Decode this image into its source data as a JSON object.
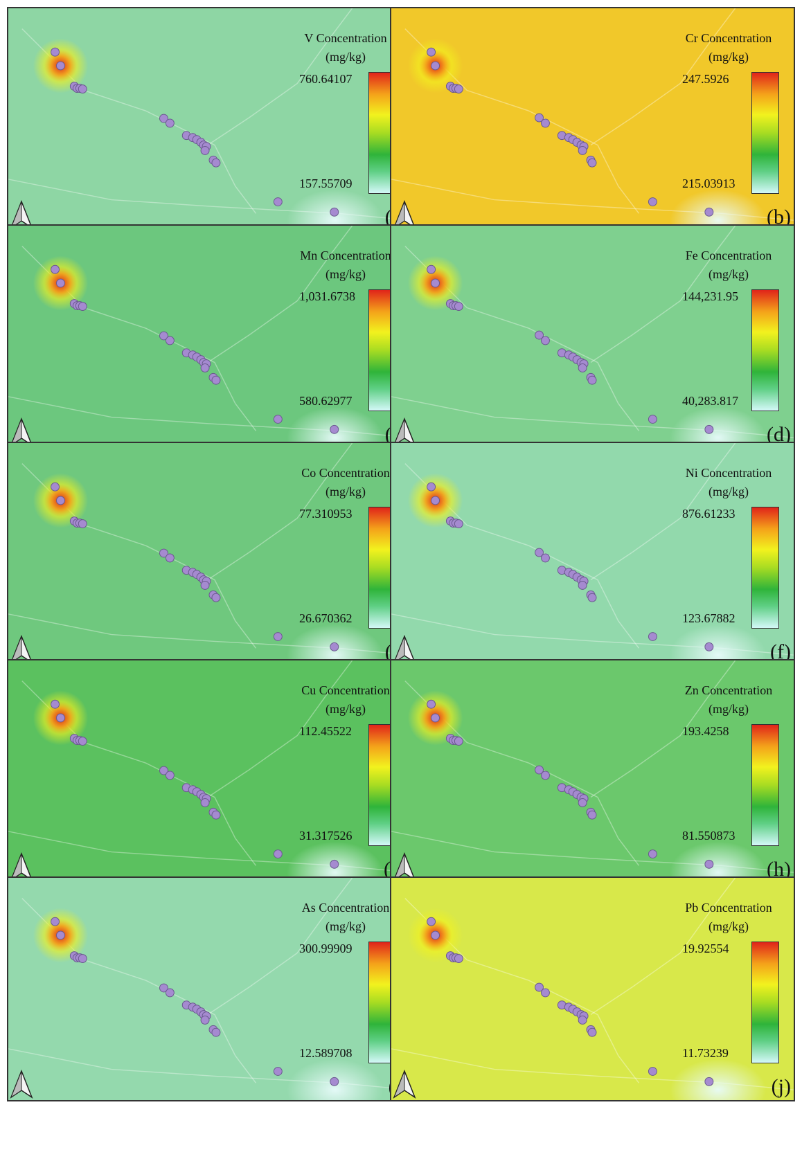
{
  "panels": [
    {
      "title": "V Concentration",
      "unit": "(mg/kg)",
      "max": "760.64107",
      "min": "157.55709",
      "label": "(a)",
      "background": "#8ed6a4"
    },
    {
      "title": "Cr Concentration",
      "unit": "(mg/kg)",
      "max": "247.5926",
      "min": "215.03913",
      "label": "(b)",
      "background": "#f1c82a"
    },
    {
      "title": "Mn Concentration",
      "unit": "(mg/kg)",
      "max": "1,031.6738",
      "min": "580.62977",
      "label": "(c)",
      "background": "#6cc77e"
    },
    {
      "title": "Fe Concentration",
      "unit": "(mg/kg)",
      "max": "144,231.95",
      "min": "40,283.817",
      "label": "(d)",
      "background": "#7fd08f"
    },
    {
      "title": "Co Concentration",
      "unit": "(mg/kg)",
      "max": "77.310953",
      "min": "26.670362",
      "label": "(e)",
      "background": "#6fc87e"
    },
    {
      "title": "Ni  Concentration",
      "unit": "(mg/kg)",
      "max": "876.61233",
      "min": "123.67882",
      "label": "(f)",
      "background": "#92d9ac"
    },
    {
      "title": "Cu Concentration",
      "unit": "(mg/kg)",
      "max": "112.45522",
      "min": "31.317526",
      "label": "(g)",
      "background": "#5bc15f"
    },
    {
      "title": "Zn Concentration",
      "unit": "(mg/kg)",
      "max": "193.4258",
      "min": "81.550873",
      "label": "(h)",
      "background": "#6bc86c"
    },
    {
      "title": "As Concentration",
      "unit": "(mg/kg)",
      "max": "300.99909",
      "min": "12.589708",
      "label": "(i)",
      "background": "#94d9ad"
    },
    {
      "title": "Pb Concentration",
      "unit": "(mg/kg)",
      "max": "19.92554",
      "min": "11.73239",
      "label": "(j)",
      "background": "#d8e84a"
    }
  ],
  "colors": {
    "sample_point": "#a58ad0",
    "colorbar_stops": [
      "#e0241a",
      "#f4a31a",
      "#f2f21e",
      "#a8dc22",
      "#2fb43a",
      "#5fcf85",
      "#d4f8f8"
    ]
  },
  "icons": [
    "north-arrow-icon"
  ]
}
